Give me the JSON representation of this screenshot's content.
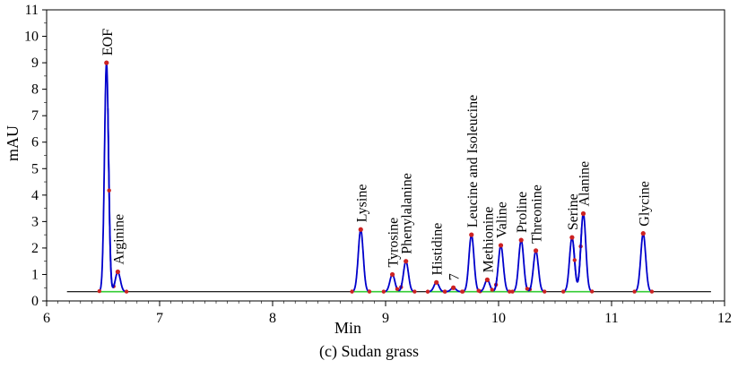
{
  "caption": "(c) Sudan grass",
  "chart_data": {
    "type": "line",
    "xlabel": "Min",
    "ylabel": "mAU",
    "xlim": [
      6,
      12
    ],
    "ylim": [
      0,
      11
    ],
    "xticks": [
      6,
      7,
      8,
      9,
      10,
      11,
      12
    ],
    "yticks": [
      0,
      1,
      2,
      3,
      4,
      5,
      6,
      7,
      8,
      9,
      10,
      11
    ],
    "grid": false,
    "baseline": 0.35,
    "colors": {
      "trace": "#0000cc",
      "baseline_segment": "#33cc33",
      "marker": "#cc2222",
      "axis": "#000000"
    },
    "peaks": [
      {
        "label": "EOF",
        "x": 6.53,
        "y": 9.0
      },
      {
        "label": "Arginine",
        "x": 6.63,
        "y": 1.1
      },
      {
        "label": "Lysine",
        "x": 8.78,
        "y": 2.7
      },
      {
        "label": "Tyrosine",
        "x": 9.06,
        "y": 1.0
      },
      {
        "label": "Phenylalanine",
        "x": 9.18,
        "y": 1.5
      },
      {
        "label": "Histidine",
        "x": 9.45,
        "y": 0.7
      },
      {
        "label": "7",
        "x": 9.6,
        "y": 0.5
      },
      {
        "label": "Leucine and Isoleucine",
        "x": 9.76,
        "y": 2.5
      },
      {
        "label": "Methionine",
        "x": 9.9,
        "y": 0.8
      },
      {
        "label": "Valine",
        "x": 10.02,
        "y": 2.1
      },
      {
        "label": "Proline",
        "x": 10.2,
        "y": 2.3
      },
      {
        "label": "Threonine",
        "x": 10.33,
        "y": 1.9
      },
      {
        "label": "Serine",
        "x": 10.65,
        "y": 2.4
      },
      {
        "label": "Alanine",
        "x": 10.75,
        "y": 3.3
      },
      {
        "label": "Glycine",
        "x": 11.28,
        "y": 2.55
      }
    ]
  }
}
